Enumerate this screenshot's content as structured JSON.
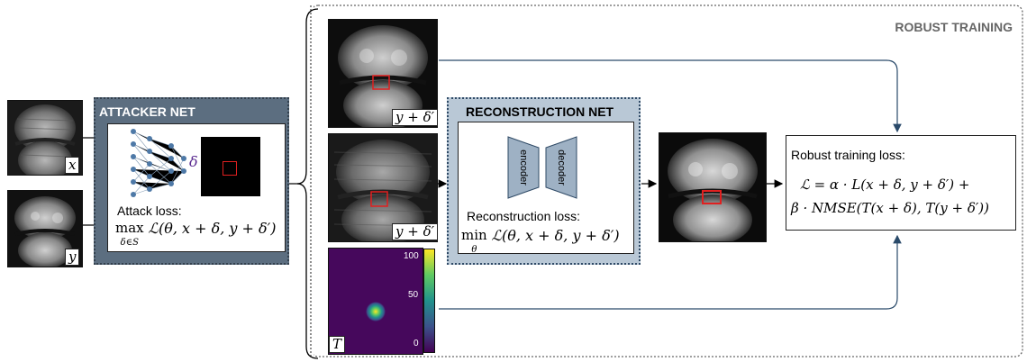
{
  "sections": {
    "robust_training": "ROBUST TRAINING",
    "attacker_net": "ATTACKER NET",
    "reconstruction_net": "RECONSTRUCTION NET"
  },
  "inputs": {
    "x_label": "x",
    "y_label": "y"
  },
  "attacker": {
    "delta_symbol": "δ",
    "loss_label": "Attack loss:",
    "loss_op": "max",
    "loss_sub": "δ∈S",
    "loss_expr": "ℒ(θ, x + δ, y + δ′)"
  },
  "middle": {
    "top_label": "y + δ′",
    "mid_label": "y + δ′",
    "mask_label": "T",
    "colorbar_ticks": [
      "100",
      "50",
      "0"
    ]
  },
  "recon": {
    "encoder": "encoder",
    "decoder": "decoder",
    "loss_label": "Reconstruction loss:",
    "loss_op": "min",
    "loss_sub": "θ",
    "loss_expr": "ℒ(θ, x + δ, y + δ′)"
  },
  "robust": {
    "loss_label": "Robust training loss:",
    "line1": "ℒ = α · L(x + δ, y + δ′) +",
    "line2": "β · NMSE(T(x + δ), T(y + δ′))"
  },
  "colors": {
    "attacker_bg": "#5c6e80",
    "recon_bg": "#b9c8d6",
    "recon_border": "#2f4a66",
    "arrow_blue": "#2a4a6a",
    "highlight_red": "#e02020",
    "node_blue": "#4e79a7"
  }
}
